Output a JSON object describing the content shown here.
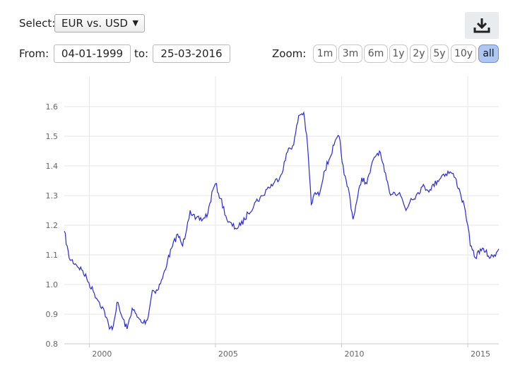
{
  "controls": {
    "select_label": "Select:",
    "select_value": "EUR vs. USD",
    "from_label": "From:",
    "from_value": "04-01-1999",
    "to_label": "to:",
    "to_value": "25-03-2016",
    "zoom_label": "Zoom:",
    "zoom_buttons": [
      "1m",
      "3m",
      "6m",
      "1y",
      "2y",
      "5y",
      "10y",
      "all"
    ],
    "zoom_active": "all",
    "download_icon": "download-icon"
  },
  "chart_data": {
    "type": "line",
    "title": "",
    "xlabel": "",
    "ylabel": "",
    "xlim": [
      1999.01,
      2016.23
    ],
    "ylim": [
      0.8,
      1.6
    ],
    "x_ticks": [
      "2000",
      "2005",
      "2010",
      "2015"
    ],
    "y_ticks": [
      "0.8",
      "0.9",
      "1.0",
      "1.1",
      "1.2",
      "1.3",
      "1.4",
      "1.5",
      "1.6"
    ],
    "grid": true,
    "line_color": "#2a2ad0",
    "series": [
      {
        "name": "",
        "x": [
          1999.01,
          1999.2,
          1999.45,
          1999.7,
          1999.9,
          2000.2,
          2000.4,
          2000.6,
          2000.8,
          2000.95,
          2001.1,
          2001.3,
          2001.5,
          2001.7,
          2001.9,
          2002.1,
          2002.3,
          2002.5,
          2002.7,
          2002.9,
          2003.1,
          2003.3,
          2003.5,
          2003.7,
          2003.9,
          2004.0,
          2004.2,
          2004.5,
          2004.7,
          2004.9,
          2005.0,
          2005.2,
          2005.5,
          2005.8,
          2006.0,
          2006.3,
          2006.6,
          2006.9,
          2007.0,
          2007.3,
          2007.6,
          2007.9,
          2008.1,
          2008.3,
          2008.5,
          2008.65,
          2008.8,
          2008.95,
          2009.1,
          2009.3,
          2009.5,
          2009.7,
          2009.9,
          2010.1,
          2010.3,
          2010.45,
          2010.6,
          2010.8,
          2011.0,
          2011.3,
          2011.5,
          2011.7,
          2011.9,
          2012.1,
          2012.3,
          2012.55,
          2012.75,
          2012.95,
          2013.2,
          2013.5,
          2013.8,
          2014.0,
          2014.3,
          2014.5,
          2014.7,
          2014.9,
          2015.0,
          2015.1,
          2015.3,
          2015.5,
          2015.7,
          2015.9,
          2016.05,
          2016.23
        ],
        "values": [
          1.18,
          1.09,
          1.07,
          1.05,
          1.02,
          0.97,
          0.94,
          0.91,
          0.85,
          0.86,
          0.94,
          0.89,
          0.85,
          0.92,
          0.89,
          0.87,
          0.88,
          0.98,
          0.98,
          1.02,
          1.08,
          1.13,
          1.17,
          1.13,
          1.21,
          1.25,
          1.22,
          1.22,
          1.24,
          1.32,
          1.34,
          1.29,
          1.21,
          1.19,
          1.2,
          1.24,
          1.28,
          1.3,
          1.32,
          1.34,
          1.37,
          1.46,
          1.47,
          1.57,
          1.58,
          1.47,
          1.27,
          1.31,
          1.3,
          1.38,
          1.42,
          1.47,
          1.5,
          1.37,
          1.31,
          1.22,
          1.28,
          1.36,
          1.34,
          1.43,
          1.45,
          1.38,
          1.31,
          1.31,
          1.31,
          1.25,
          1.29,
          1.3,
          1.33,
          1.32,
          1.35,
          1.37,
          1.38,
          1.36,
          1.31,
          1.25,
          1.2,
          1.13,
          1.09,
          1.12,
          1.11,
          1.09,
          1.1,
          1.12
        ]
      }
    ]
  }
}
